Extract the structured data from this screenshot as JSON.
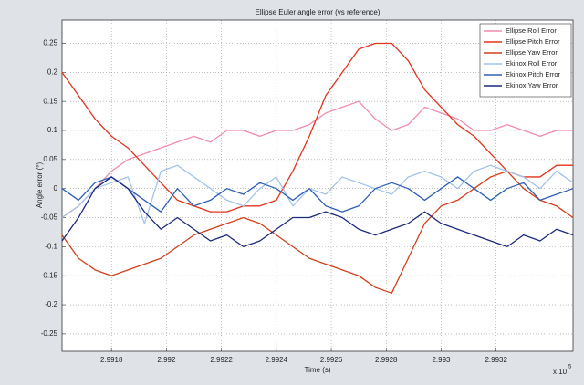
{
  "chart_data": {
    "type": "line",
    "title": "Ellipse Euler angle error (vs reference)",
    "x_label": "Time (s)",
    "y_label": "Angle error (°)",
    "x_multiplier": {
      "base": "x 10",
      "exponent": "5"
    },
    "x": [
      2.99162,
      2.99168,
      2.99174,
      2.9918,
      2.99186,
      2.99192,
      2.99198,
      2.99204,
      2.9921,
      2.99216,
      2.99222,
      2.99228,
      2.99234,
      2.9924,
      2.99246,
      2.99252,
      2.99258,
      2.99264,
      2.9927,
      2.99276,
      2.99282,
      2.99288,
      2.99294,
      2.993,
      2.99306,
      2.99312,
      2.99318,
      2.99324,
      2.9933,
      2.99336,
      2.99342,
      2.99348
    ],
    "series": [
      {
        "name": "Ellipse Roll Error",
        "color": "#f08cb4",
        "values": [
          -0.05,
          -0.03,
          0.0,
          0.03,
          0.05,
          0.06,
          0.07,
          0.08,
          0.09,
          0.08,
          0.1,
          0.1,
          0.09,
          0.1,
          0.1,
          0.11,
          0.13,
          0.14,
          0.15,
          0.12,
          0.1,
          0.11,
          0.14,
          0.13,
          0.12,
          0.1,
          0.1,
          0.11,
          0.1,
          0.09,
          0.1,
          0.1
        ]
      },
      {
        "name": "Ellipse Pitch Error",
        "color": "#e4321f",
        "values": [
          0.2,
          0.16,
          0.12,
          0.09,
          0.07,
          0.04,
          0.01,
          -0.02,
          -0.03,
          -0.04,
          -0.04,
          -0.03,
          -0.03,
          -0.02,
          0.03,
          0.09,
          0.16,
          0.2,
          0.24,
          0.25,
          0.25,
          0.22,
          0.17,
          0.14,
          0.11,
          0.09,
          0.06,
          0.03,
          0.02,
          0.02,
          0.04,
          0.04
        ]
      },
      {
        "name": "Ellipse Yaw Error",
        "color": "#d2401c",
        "values": [
          -0.08,
          -0.12,
          -0.14,
          -0.15,
          -0.14,
          -0.13,
          -0.12,
          -0.1,
          -0.08,
          -0.07,
          -0.06,
          -0.05,
          -0.06,
          -0.08,
          -0.1,
          -0.12,
          -0.13,
          -0.14,
          -0.15,
          -0.17,
          -0.18,
          -0.12,
          -0.06,
          -0.03,
          -0.02,
          0.0,
          0.02,
          0.03,
          0.0,
          -0.02,
          -0.03,
          -0.05
        ]
      },
      {
        "name": "Ekinox Roll Error",
        "color": "#a3c3ea",
        "values": [
          -0.05,
          -0.03,
          0.0,
          0.01,
          0.02,
          -0.06,
          0.03,
          0.04,
          0.02,
          0.0,
          -0.02,
          -0.03,
          0.0,
          0.02,
          -0.03,
          0.0,
          -0.01,
          0.02,
          0.01,
          0.0,
          -0.01,
          0.02,
          0.03,
          0.02,
          0.0,
          0.03,
          0.04,
          0.03,
          0.02,
          0.0,
          0.03,
          0.01
        ]
      },
      {
        "name": "Ekinox Pitch Error",
        "color": "#2f5fb5",
        "values": [
          0.0,
          -0.02,
          0.01,
          0.02,
          0.0,
          -0.02,
          -0.04,
          0.0,
          -0.03,
          -0.02,
          0.0,
          -0.01,
          0.01,
          0.0,
          -0.02,
          0.0,
          -0.03,
          -0.04,
          -0.03,
          0.0,
          0.01,
          0.0,
          -0.02,
          0.0,
          0.02,
          0.0,
          -0.02,
          0.0,
          0.01,
          -0.02,
          -0.01,
          0.0
        ]
      },
      {
        "name": "Ekinox Yaw Error",
        "color": "#1b2a7c",
        "values": [
          -0.09,
          -0.05,
          0.0,
          0.02,
          0.0,
          -0.04,
          -0.07,
          -0.05,
          -0.07,
          -0.09,
          -0.08,
          -0.1,
          -0.09,
          -0.07,
          -0.05,
          -0.05,
          -0.04,
          -0.05,
          -0.07,
          -0.08,
          -0.07,
          -0.06,
          -0.04,
          -0.06,
          -0.07,
          -0.08,
          -0.09,
          -0.1,
          -0.08,
          -0.09,
          -0.07,
          -0.08
        ]
      }
    ],
    "xlim": [
      2.99162,
      2.99348
    ],
    "xticks": [
      2.9918,
      2.992,
      2.9922,
      2.9924,
      2.9926,
      2.9928,
      2.993,
      2.9932
    ],
    "ylim": [
      -0.28,
      0.29
    ],
    "yticks": [
      0.25,
      0.2,
      0.15,
      0.1,
      0.05,
      0,
      -0.05,
      -0.1,
      -0.15,
      -0.2,
      -0.25
    ],
    "grid": true,
    "legend": "northeast"
  }
}
